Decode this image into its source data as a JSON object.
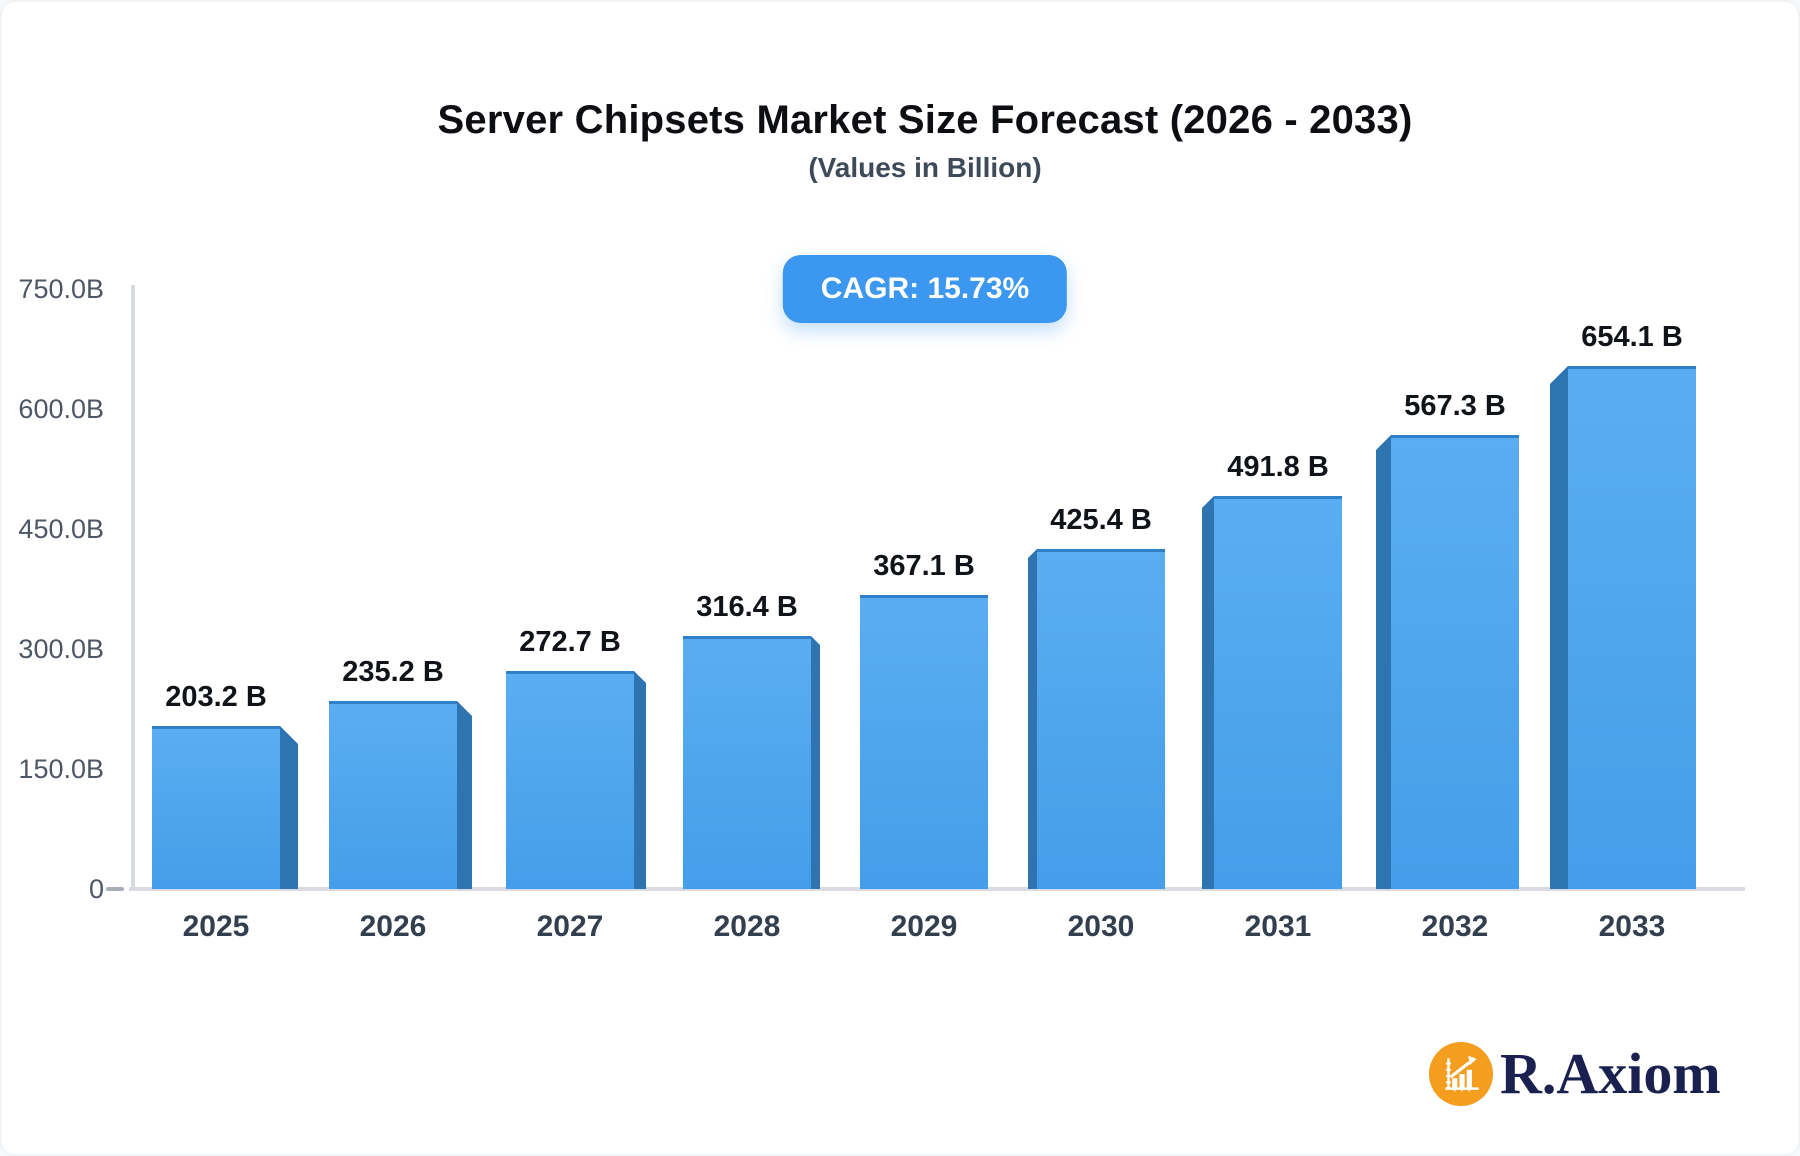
{
  "header": {
    "title": "Server Chipsets Market Size Forecast (2026 - 2033)",
    "subtitle": "(Values in Billion)",
    "badge_label": "CAGR: 15.73%"
  },
  "chart_data": {
    "type": "bar",
    "title": "Server Chipsets Market Size Forecast (2026 - 2033)",
    "subtitle": "(Values in Billion)",
    "cagr_label": "CAGR: 15.73%",
    "unit": "Billion",
    "categories": [
      "2025",
      "2026",
      "2027",
      "2028",
      "2029",
      "2030",
      "2031",
      "2032",
      "2033"
    ],
    "values": [
      203.2,
      235.2,
      272.7,
      316.4,
      367.1,
      425.4,
      491.8,
      567.3,
      654.1
    ],
    "bar_labels": [
      "203.2 B",
      "235.2 B",
      "272.7 B",
      "316.4 B",
      "367.1 B",
      "425.4 B",
      "491.8 B",
      "567.3 B",
      "654.1 B"
    ],
    "xlabel": "",
    "ylabel": "",
    "ylim": [
      0,
      750
    ],
    "yticks": [
      {
        "label": "750.0B",
        "value": 750
      },
      {
        "label": "600.0B",
        "value": 600
      },
      {
        "label": "450.0B",
        "value": 450
      },
      {
        "label": "300.0B",
        "value": 300
      },
      {
        "label": "150.0B",
        "value": 150
      },
      {
        "label": "0",
        "value": 0
      }
    ],
    "grid": false,
    "legend": false,
    "style": "3d-center-perspective-bars"
  },
  "colors": {
    "bar_top": "#5badf1",
    "bar_bottom": "#449ee9",
    "bar_top_edge": "#2f80c8",
    "bar_side": "#2e74b1",
    "badge_bg": "#3b97ef",
    "badge_text": "#ffffff",
    "axis_line": "#d8dbe0",
    "tick_dash": "#a7aeb8",
    "brand_orange": "#f49d1f",
    "brand_navy": "#1a2150"
  },
  "footer": {
    "brand": "R.Axiom"
  }
}
